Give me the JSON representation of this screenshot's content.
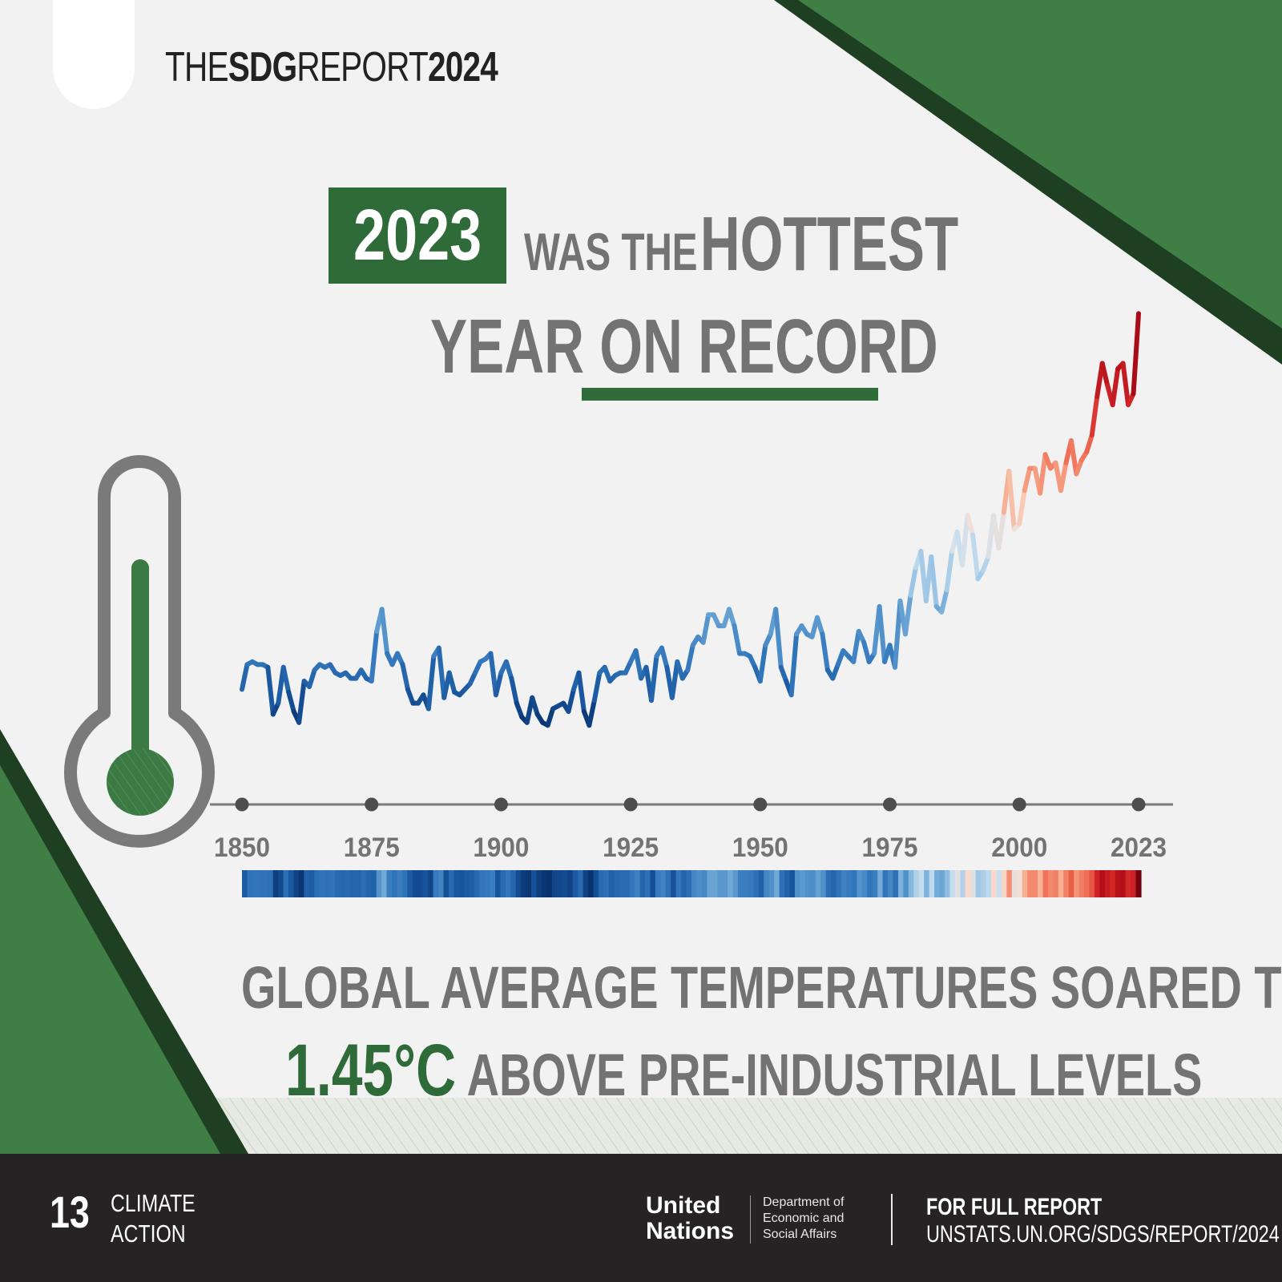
{
  "header": {
    "title_part1": "THE",
    "title_part2": "SDG",
    "title_part3": "REPORT",
    "title_part4": "2024",
    "logo_icon": "sdg-wheel-icon"
  },
  "headline": {
    "year": "2023",
    "line1_small": "WAS THE",
    "line1_big": "HOTTEST",
    "line2_plain": "YEAR",
    "line2_underlined": "ON RECORD"
  },
  "statement": {
    "line1": "GLOBAL AVERAGE TEMPERATURES SOARED TO",
    "highlight": "1.45°C",
    "line2_rest": "ABOVE PRE-INDUSTRIAL LEVELS"
  },
  "footer": {
    "goal_number": "13",
    "goal_line1": "CLIMATE",
    "goal_line2": "ACTION",
    "un_line1": "United",
    "un_line2": "Nations",
    "desa_line1": "Department of",
    "desa_line2": "Economic and",
    "desa_line3": "Social Affairs",
    "report_label": "FOR FULL REPORT",
    "report_url": "UNSTATS.UN.ORG/SDGS/REPORT/2024"
  },
  "colors": {
    "brand_green": "#2f6b38",
    "corner_green": "#3f7f45",
    "corner_dark": "#1f3f22",
    "text_grey": "#737373",
    "footer_bg": "#262324"
  },
  "chart_data": {
    "type": "line",
    "title": "",
    "xlabel": "",
    "ylabel": "",
    "x_ticks": [
      "1850",
      "1875",
      "1900",
      "1925",
      "1950",
      "1975",
      "2000",
      "2023"
    ],
    "x_range": [
      1850,
      2023
    ],
    "y_range": [
      -0.55,
      1.3
    ],
    "grid": false,
    "legend": "none",
    "warming_stripes": true,
    "color_scale": "blue (cooler) to red (warmer)",
    "series": [
      {
        "x": [
          1850,
          1851,
          1852,
          1853,
          1854,
          1855,
          1856,
          1857,
          1858,
          1859,
          1860,
          1861,
          1862,
          1863,
          1864,
          1865,
          1866,
          1867,
          1868,
          1869,
          1870,
          1871,
          1872,
          1873,
          1874,
          1875,
          1876,
          1877,
          1878,
          1879,
          1880,
          1881,
          1882,
          1883,
          1884,
          1885,
          1886,
          1887,
          1888,
          1889,
          1890,
          1891,
          1892,
          1893,
          1894,
          1895,
          1896,
          1897,
          1898,
          1899,
          1900,
          1901,
          1902,
          1903,
          1904,
          1905,
          1906,
          1907,
          1908,
          1909,
          1910,
          1911,
          1912,
          1913,
          1914,
          1915,
          1916,
          1917,
          1918,
          1919,
          1920,
          1921,
          1922,
          1923,
          1924,
          1925,
          1926,
          1927,
          1928,
          1929,
          1930,
          1931,
          1932,
          1933,
          1934,
          1935,
          1936,
          1937,
          1938,
          1939,
          1940,
          1941,
          1942,
          1943,
          1944,
          1945,
          1946,
          1947,
          1948,
          1949,
          1950,
          1951,
          1952,
          1953,
          1954,
          1955,
          1956,
          1957,
          1958,
          1959,
          1960,
          1961,
          1962,
          1963,
          1964,
          1965,
          1966,
          1967,
          1968,
          1969,
          1970,
          1971,
          1972,
          1973,
          1974,
          1975,
          1976,
          1977,
          1978,
          1979,
          1980,
          1981,
          1982,
          1983,
          1984,
          1985,
          1986,
          1987,
          1988,
          1989,
          1990,
          1991,
          1992,
          1993,
          1994,
          1995,
          1996,
          1997,
          1998,
          1999,
          2000,
          2001,
          2002,
          2003,
          2004,
          2005,
          2006,
          2007,
          2008,
          2009,
          2010,
          2011,
          2012,
          2013,
          2014,
          2015,
          2016,
          2017,
          2018,
          2019,
          2020,
          2021,
          2022,
          2023
        ],
        "values": [
          -0.18,
          -0.09,
          -0.08,
          -0.09,
          -0.09,
          -0.1,
          -0.27,
          -0.23,
          -0.1,
          -0.19,
          -0.26,
          -0.3,
          -0.15,
          -0.17,
          -0.11,
          -0.09,
          -0.1,
          -0.09,
          -0.12,
          -0.13,
          -0.12,
          -0.14,
          -0.14,
          -0.11,
          -0.14,
          -0.15,
          0.03,
          0.11,
          -0.05,
          -0.09,
          -0.05,
          -0.09,
          -0.18,
          -0.23,
          -0.23,
          -0.2,
          -0.25,
          -0.06,
          -0.03,
          -0.21,
          -0.12,
          -0.19,
          -0.2,
          -0.18,
          -0.16,
          -0.12,
          -0.08,
          -0.07,
          -0.05,
          -0.2,
          -0.12,
          -0.08,
          -0.14,
          -0.23,
          -0.28,
          -0.3,
          -0.21,
          -0.27,
          -0.3,
          -0.31,
          -0.25,
          -0.24,
          -0.23,
          -0.26,
          -0.18,
          -0.12,
          -0.26,
          -0.31,
          -0.22,
          -0.12,
          -0.1,
          -0.15,
          -0.13,
          -0.12,
          -0.12,
          -0.08,
          -0.04,
          -0.14,
          -0.1,
          -0.22,
          -0.06,
          -0.03,
          -0.1,
          -0.21,
          -0.08,
          -0.14,
          -0.11,
          -0.02,
          0.01,
          -0.01,
          0.09,
          0.09,
          0.05,
          0.05,
          0.11,
          0.05,
          -0.05,
          -0.05,
          -0.06,
          -0.1,
          -0.15,
          -0.02,
          0.02,
          0.11,
          -0.1,
          -0.15,
          -0.2,
          0.02,
          0.05,
          0.02,
          0.01,
          0.08,
          0.02,
          -0.11,
          -0.14,
          -0.09,
          -0.04,
          -0.06,
          -0.08,
          0.03,
          -0.01,
          -0.08,
          -0.05,
          0.12,
          -0.08,
          -0.02,
          -0.1,
          0.14,
          0.02,
          0.16,
          0.26,
          0.32,
          0.14,
          0.3,
          0.12,
          0.1,
          0.18,
          0.32,
          0.39,
          0.27,
          0.45,
          0.38,
          0.22,
          0.25,
          0.3,
          0.45,
          0.33,
          0.46,
          0.61,
          0.4,
          0.42,
          0.54,
          0.62,
          0.62,
          0.53,
          0.67,
          0.62,
          0.64,
          0.54,
          0.64,
          0.72,
          0.6,
          0.65,
          0.68,
          0.74,
          0.88,
          1.0,
          0.92,
          0.85,
          0.98,
          1.0,
          0.85,
          0.89,
          1.18
        ]
      }
    ]
  }
}
